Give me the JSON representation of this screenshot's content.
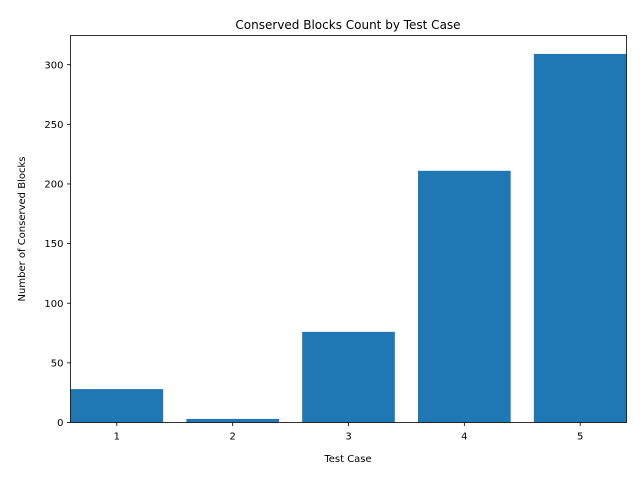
{
  "chart_data": {
    "type": "bar",
    "title": "Conserved Blocks Count by Test Case",
    "xlabel": "Test Case",
    "ylabel": "Number of Conserved Blocks",
    "categories": [
      "1",
      "2",
      "3",
      "4",
      "5"
    ],
    "values": [
      28,
      3,
      76,
      211,
      309
    ],
    "ylim": [
      0,
      324.45
    ],
    "yticks": [
      0,
      50,
      100,
      150,
      200,
      250,
      300
    ],
    "bar_color": "#1f77b4",
    "grid": false,
    "legend": "none"
  }
}
